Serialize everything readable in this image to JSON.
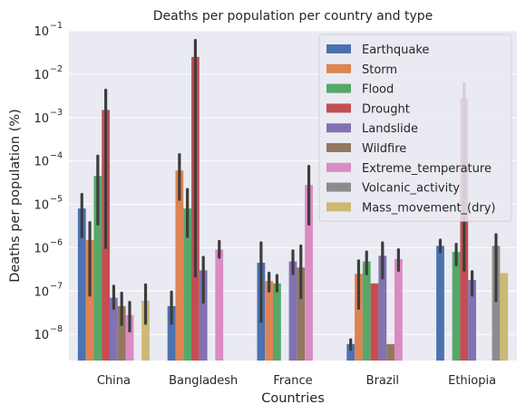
{
  "chart_data": {
    "type": "bar",
    "title": "Deaths per population per country and type",
    "xlabel": "Countries",
    "ylabel": "Deaths per population (%)",
    "yscale": "log",
    "ylim": [
      2.5e-09,
      0.1
    ],
    "yticks": [
      {
        "value": 1e-08,
        "base": "10",
        "exp": "−8"
      },
      {
        "value": 1e-07,
        "base": "10",
        "exp": "−7"
      },
      {
        "value": 1e-06,
        "base": "10",
        "exp": "−6"
      },
      {
        "value": 1e-05,
        "base": "10",
        "exp": "−5"
      },
      {
        "value": 0.0001,
        "base": "10",
        "exp": "−4"
      },
      {
        "value": 0.001,
        "base": "10",
        "exp": "−3"
      },
      {
        "value": 0.01,
        "base": "10",
        "exp": "−2"
      },
      {
        "value": 0.1,
        "base": "10",
        "exp": "−1"
      }
    ],
    "grid": true,
    "legend_position": "top-right",
    "categories": [
      "China",
      "Bangladesh",
      "France",
      "Brazil",
      "Ethiopia"
    ],
    "series": [
      {
        "name": "Earthquake",
        "color": "#4c72b0",
        "values": [
          8e-06,
          4.5e-08,
          4.5e-07,
          6e-09,
          1.1e-06
        ],
        "err": [
          [
            1.8e-06,
            1.7e-05
          ],
          [
            1.8e-08,
            9.5e-08
          ],
          [
            2e-08,
            1.3e-06
          ],
          [
            4.5e-09,
            7.5e-09
          ],
          [
            8e-07,
            1.5e-06
          ]
        ]
      },
      {
        "name": "Storm",
        "color": "#dd8452",
        "values": [
          1.5e-06,
          6e-05,
          1.7e-07,
          2.5e-07,
          null
        ],
        "err": [
          [
            8e-08,
            3.8e-06
          ],
          [
            1.3e-05,
            0.00014
          ],
          [
            1e-07,
            2.6e-07
          ],
          [
            4e-08,
            5e-07
          ],
          null
        ]
      },
      {
        "name": "Flood",
        "color": "#55a868",
        "values": [
          4.5e-05,
          8e-06,
          1.5e-07,
          4.8e-07,
          8e-07
        ],
        "err": [
          [
            3.5e-06,
            0.00013
          ],
          [
            1.8e-06,
            2.2e-05
          ],
          [
            1e-07,
            2.3e-07
          ],
          [
            2.5e-07,
            8e-07
          ],
          [
            4e-07,
            1.2e-06
          ]
        ]
      },
      {
        "name": "Drought",
        "color": "#c44e52",
        "values": [
          0.0015,
          0.025,
          null,
          1.5e-07,
          0.0028
        ],
        "err": [
          [
            1e-06,
            0.0043
          ],
          [
            2.2e-07,
            0.06
          ],
          null,
          null,
          [
            3e-07,
            0.006
          ]
        ]
      },
      {
        "name": "Landslide",
        "color": "#8172b3",
        "values": [
          7e-08,
          3e-07,
          4.8e-07,
          6.5e-07,
          1.8e-07
        ],
        "err": [
          [
            4e-08,
            1.3e-07
          ],
          [
            5.5e-08,
            6e-07
          ],
          [
            2.5e-07,
            8.5e-07
          ],
          [
            2e-07,
            1.3e-06
          ],
          [
            8e-08,
            2.8e-07
          ]
        ]
      },
      {
        "name": "Wildfire",
        "color": "#937860",
        "values": [
          4.5e-08,
          null,
          3.5e-07,
          6e-09,
          null
        ],
        "err": [
          [
            1.7e-08,
            9e-08
          ],
          null,
          [
            7e-08,
            1.1e-06
          ],
          null,
          null
        ]
      },
      {
        "name": "Extreme_temperature",
        "color": "#da8bc3",
        "values": [
          2.8e-08,
          9e-07,
          2.8e-05,
          5.5e-07,
          null
        ],
        "err": [
          [
            1.2e-08,
            5.5e-08
          ],
          [
            6e-07,
            1.4e-06
          ],
          [
            3.5e-06,
            7.5e-05
          ],
          [
            3e-07,
            9e-07
          ],
          null
        ]
      },
      {
        "name": "Volcanic_activity",
        "color": "#8c8c8c",
        "values": [
          null,
          null,
          null,
          null,
          1.1e-06
        ],
        "err": [
          null,
          null,
          null,
          null,
          [
            6e-08,
            2e-06
          ]
        ]
      },
      {
        "name": "Mass_movement_(dry)",
        "color": "#ccb974",
        "values": [
          6e-08,
          null,
          null,
          null,
          2.6e-07
        ],
        "err": [
          [
            1.8e-08,
            1.4e-07
          ],
          null,
          null,
          null,
          null
        ]
      }
    ]
  }
}
